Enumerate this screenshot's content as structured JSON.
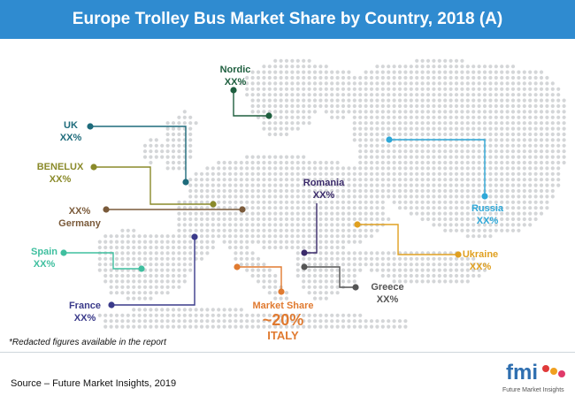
{
  "title": "Europe Trolley Bus Market Share by Country, 2018 (A)",
  "colors": {
    "title_bg": "#2f8bd0",
    "map_dots": "#d4d6d8",
    "nordic": "#1f5f3f",
    "uk": "#1e6b7b",
    "benelux": "#8a8a2a",
    "germany": "#7a5a3a",
    "spain": "#3fbf9f",
    "france": "#3a3a8a",
    "romania": "#3a2a6a",
    "russia": "#2fa8d8",
    "ukraine": "#e0a020",
    "greece": "#555555",
    "italy": "#e07a30"
  },
  "countries": {
    "nordic": {
      "name": "Nordic",
      "value": "XX%"
    },
    "uk": {
      "name": "UK",
      "value": "XX%"
    },
    "benelux": {
      "name": "BENELUX",
      "value": "XX%"
    },
    "germany": {
      "name": "Germany",
      "value": "XX%"
    },
    "spain": {
      "name": "Spain",
      "value": "XX%"
    },
    "france": {
      "name": "France",
      "value": "XX%"
    },
    "romania": {
      "name": "Romania",
      "value": "XX%"
    },
    "russia": {
      "name": "Russia",
      "value": "XX%"
    },
    "ukraine": {
      "name": "Ukraine",
      "value": "XX%"
    },
    "greece": {
      "name": "Greece",
      "value": "XX%"
    }
  },
  "italy": {
    "caption": "Market Share",
    "value": "~20%",
    "name": "ITALY"
  },
  "note": "*Redacted figures available in the report",
  "source": "Source – Future Market Insights, 2019",
  "logo": {
    "letters": "fmi",
    "tagline": "Future Market Insights"
  }
}
